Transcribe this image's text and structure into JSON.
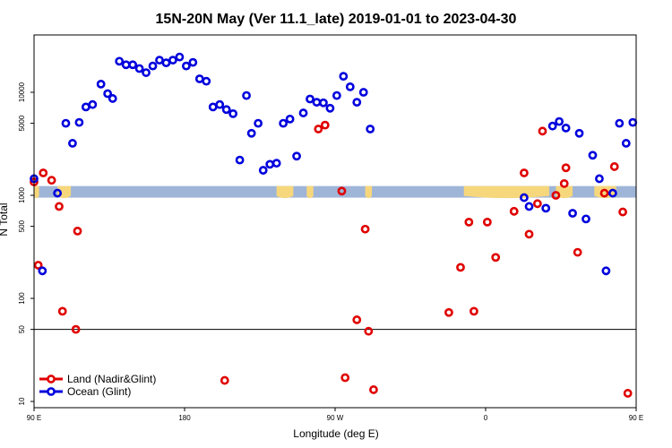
{
  "chart_data": {
    "type": "scatter",
    "title": "15N-20N May (Ver 11.1_late)   2019-01-01 to 2023-04-30",
    "xlabel": "Longitude (deg E)",
    "ylabel": "N Total",
    "y_scale": "log",
    "xlim_shifted": [
      0,
      360
    ],
    "ylim": [
      8.7,
      36000
    ],
    "x_ticks": [
      {
        "value": 0,
        "label": "90 E"
      },
      {
        "value": 90,
        "label": "180"
      },
      {
        "value": 180,
        "label": "90 W"
      },
      {
        "value": 270,
        "label": "0"
      },
      {
        "value": 360,
        "label": "90 E"
      },
      {
        "value": 450,
        "label": "180"
      }
    ],
    "y_ticks": [
      {
        "value": 10,
        "label": "10"
      },
      {
        "value": 50,
        "label": "50"
      },
      {
        "value": 100,
        "label": "100"
      },
      {
        "value": 500,
        "label": "500"
      },
      {
        "value": 1000,
        "label": "1000"
      },
      {
        "value": 5000,
        "label": "5000"
      },
      {
        "value": 10000,
        "label": "10000"
      }
    ],
    "reference_line": 50,
    "land_band": {
      "y_low": 950,
      "y_high": 1230,
      "ocean_color": "#9fb5d8",
      "land_color": "#f7d77c"
    },
    "series": [
      {
        "name": "Land (Nadir&Glint)",
        "color": "#e00000",
        "points": [
          [
            0,
            1350
          ],
          [
            2.5,
            210
          ],
          [
            5.5,
            1650
          ],
          [
            10.5,
            1400
          ],
          [
            15,
            780
          ],
          [
            17,
            75
          ],
          [
            25,
            50
          ],
          [
            26,
            450
          ],
          [
            114,
            16
          ],
          [
            170,
            4400
          ],
          [
            174,
            4800
          ],
          [
            184,
            1100
          ],
          [
            186,
            17
          ],
          [
            193,
            62
          ],
          [
            198,
            470
          ],
          [
            200,
            48
          ],
          [
            203,
            13
          ],
          [
            248,
            73
          ],
          [
            255,
            200
          ],
          [
            260,
            550
          ],
          [
            263,
            75
          ],
          [
            271,
            550
          ],
          [
            276,
            250
          ],
          [
            287,
            700
          ],
          [
            293,
            1650
          ],
          [
            296,
            420
          ],
          [
            301,
            830
          ],
          [
            304,
            4200
          ],
          [
            312,
            1000
          ],
          [
            317,
            1300
          ],
          [
            318,
            1850
          ],
          [
            325,
            280
          ],
          [
            341,
            1050
          ],
          [
            347,
            1900
          ],
          [
            352,
            690
          ],
          [
            355,
            12
          ],
          [
            375,
            210
          ],
          [
            378,
            1650
          ],
          [
            384,
            1500
          ],
          [
            386,
            790
          ],
          [
            392,
            75
          ],
          [
            407,
            50
          ],
          [
            408,
            440
          ]
        ]
      },
      {
        "name": "Ocean (Glint)",
        "color": "#0000dd",
        "points": [
          [
            0,
            1450
          ],
          [
            5,
            185
          ],
          [
            14,
            1050
          ],
          [
            19,
            5000
          ],
          [
            23,
            3200
          ],
          [
            27,
            5100
          ],
          [
            31,
            7200
          ],
          [
            35,
            7600
          ],
          [
            40,
            12000
          ],
          [
            44,
            9700
          ],
          [
            47,
            8700
          ],
          [
            51,
            20000
          ],
          [
            55,
            18500
          ],
          [
            59,
            18500
          ],
          [
            63,
            17000
          ],
          [
            67,
            15500
          ],
          [
            71,
            18000
          ],
          [
            75,
            20500
          ],
          [
            79,
            19300
          ],
          [
            83,
            20500
          ],
          [
            87,
            22000
          ],
          [
            91,
            18000
          ],
          [
            95,
            19500
          ],
          [
            99,
            13500
          ],
          [
            103,
            12800
          ],
          [
            107,
            7200
          ],
          [
            111,
            7600
          ],
          [
            115,
            6800
          ],
          [
            119,
            6200
          ],
          [
            123,
            2200
          ],
          [
            127,
            9300
          ],
          [
            130,
            4000
          ],
          [
            134,
            5000
          ],
          [
            137,
            1750
          ],
          [
            141,
            2000
          ],
          [
            145,
            2050
          ],
          [
            149,
            5000
          ],
          [
            153,
            5500
          ],
          [
            157,
            2400
          ],
          [
            161,
            6300
          ],
          [
            165,
            8600
          ],
          [
            169,
            8000
          ],
          [
            173,
            7900
          ],
          [
            177,
            7000
          ],
          [
            181,
            9300
          ],
          [
            185,
            14300
          ],
          [
            189,
            11300
          ],
          [
            193,
            8000
          ],
          [
            197,
            10000
          ],
          [
            201,
            4400
          ],
          [
            293,
            950
          ],
          [
            296,
            780
          ],
          [
            306,
            750
          ],
          [
            310,
            4700
          ],
          [
            314,
            5200
          ],
          [
            318,
            4500
          ],
          [
            322,
            670
          ],
          [
            326,
            4000
          ],
          [
            330,
            590
          ],
          [
            334,
            2450
          ],
          [
            338,
            1450
          ],
          [
            342,
            185
          ],
          [
            346,
            1050
          ],
          [
            350,
            5000
          ],
          [
            354,
            3200
          ],
          [
            358,
            5100
          ],
          [
            362,
            7200
          ],
          [
            366,
            7600
          ],
          [
            370,
            12000
          ],
          [
            374,
            9700
          ],
          [
            378,
            8700
          ],
          [
            381,
            20000
          ],
          [
            385,
            18500
          ],
          [
            389,
            18500
          ],
          [
            393,
            17000
          ],
          [
            397,
            15500
          ],
          [
            401,
            18000
          ]
        ]
      }
    ],
    "legend": {
      "placement": "bottom-left",
      "entries": [
        {
          "label": "Land (Nadir&Glint)",
          "color": "#e00000"
        },
        {
          "label": "Ocean (Glint)",
          "color": "#0000dd"
        }
      ]
    }
  }
}
